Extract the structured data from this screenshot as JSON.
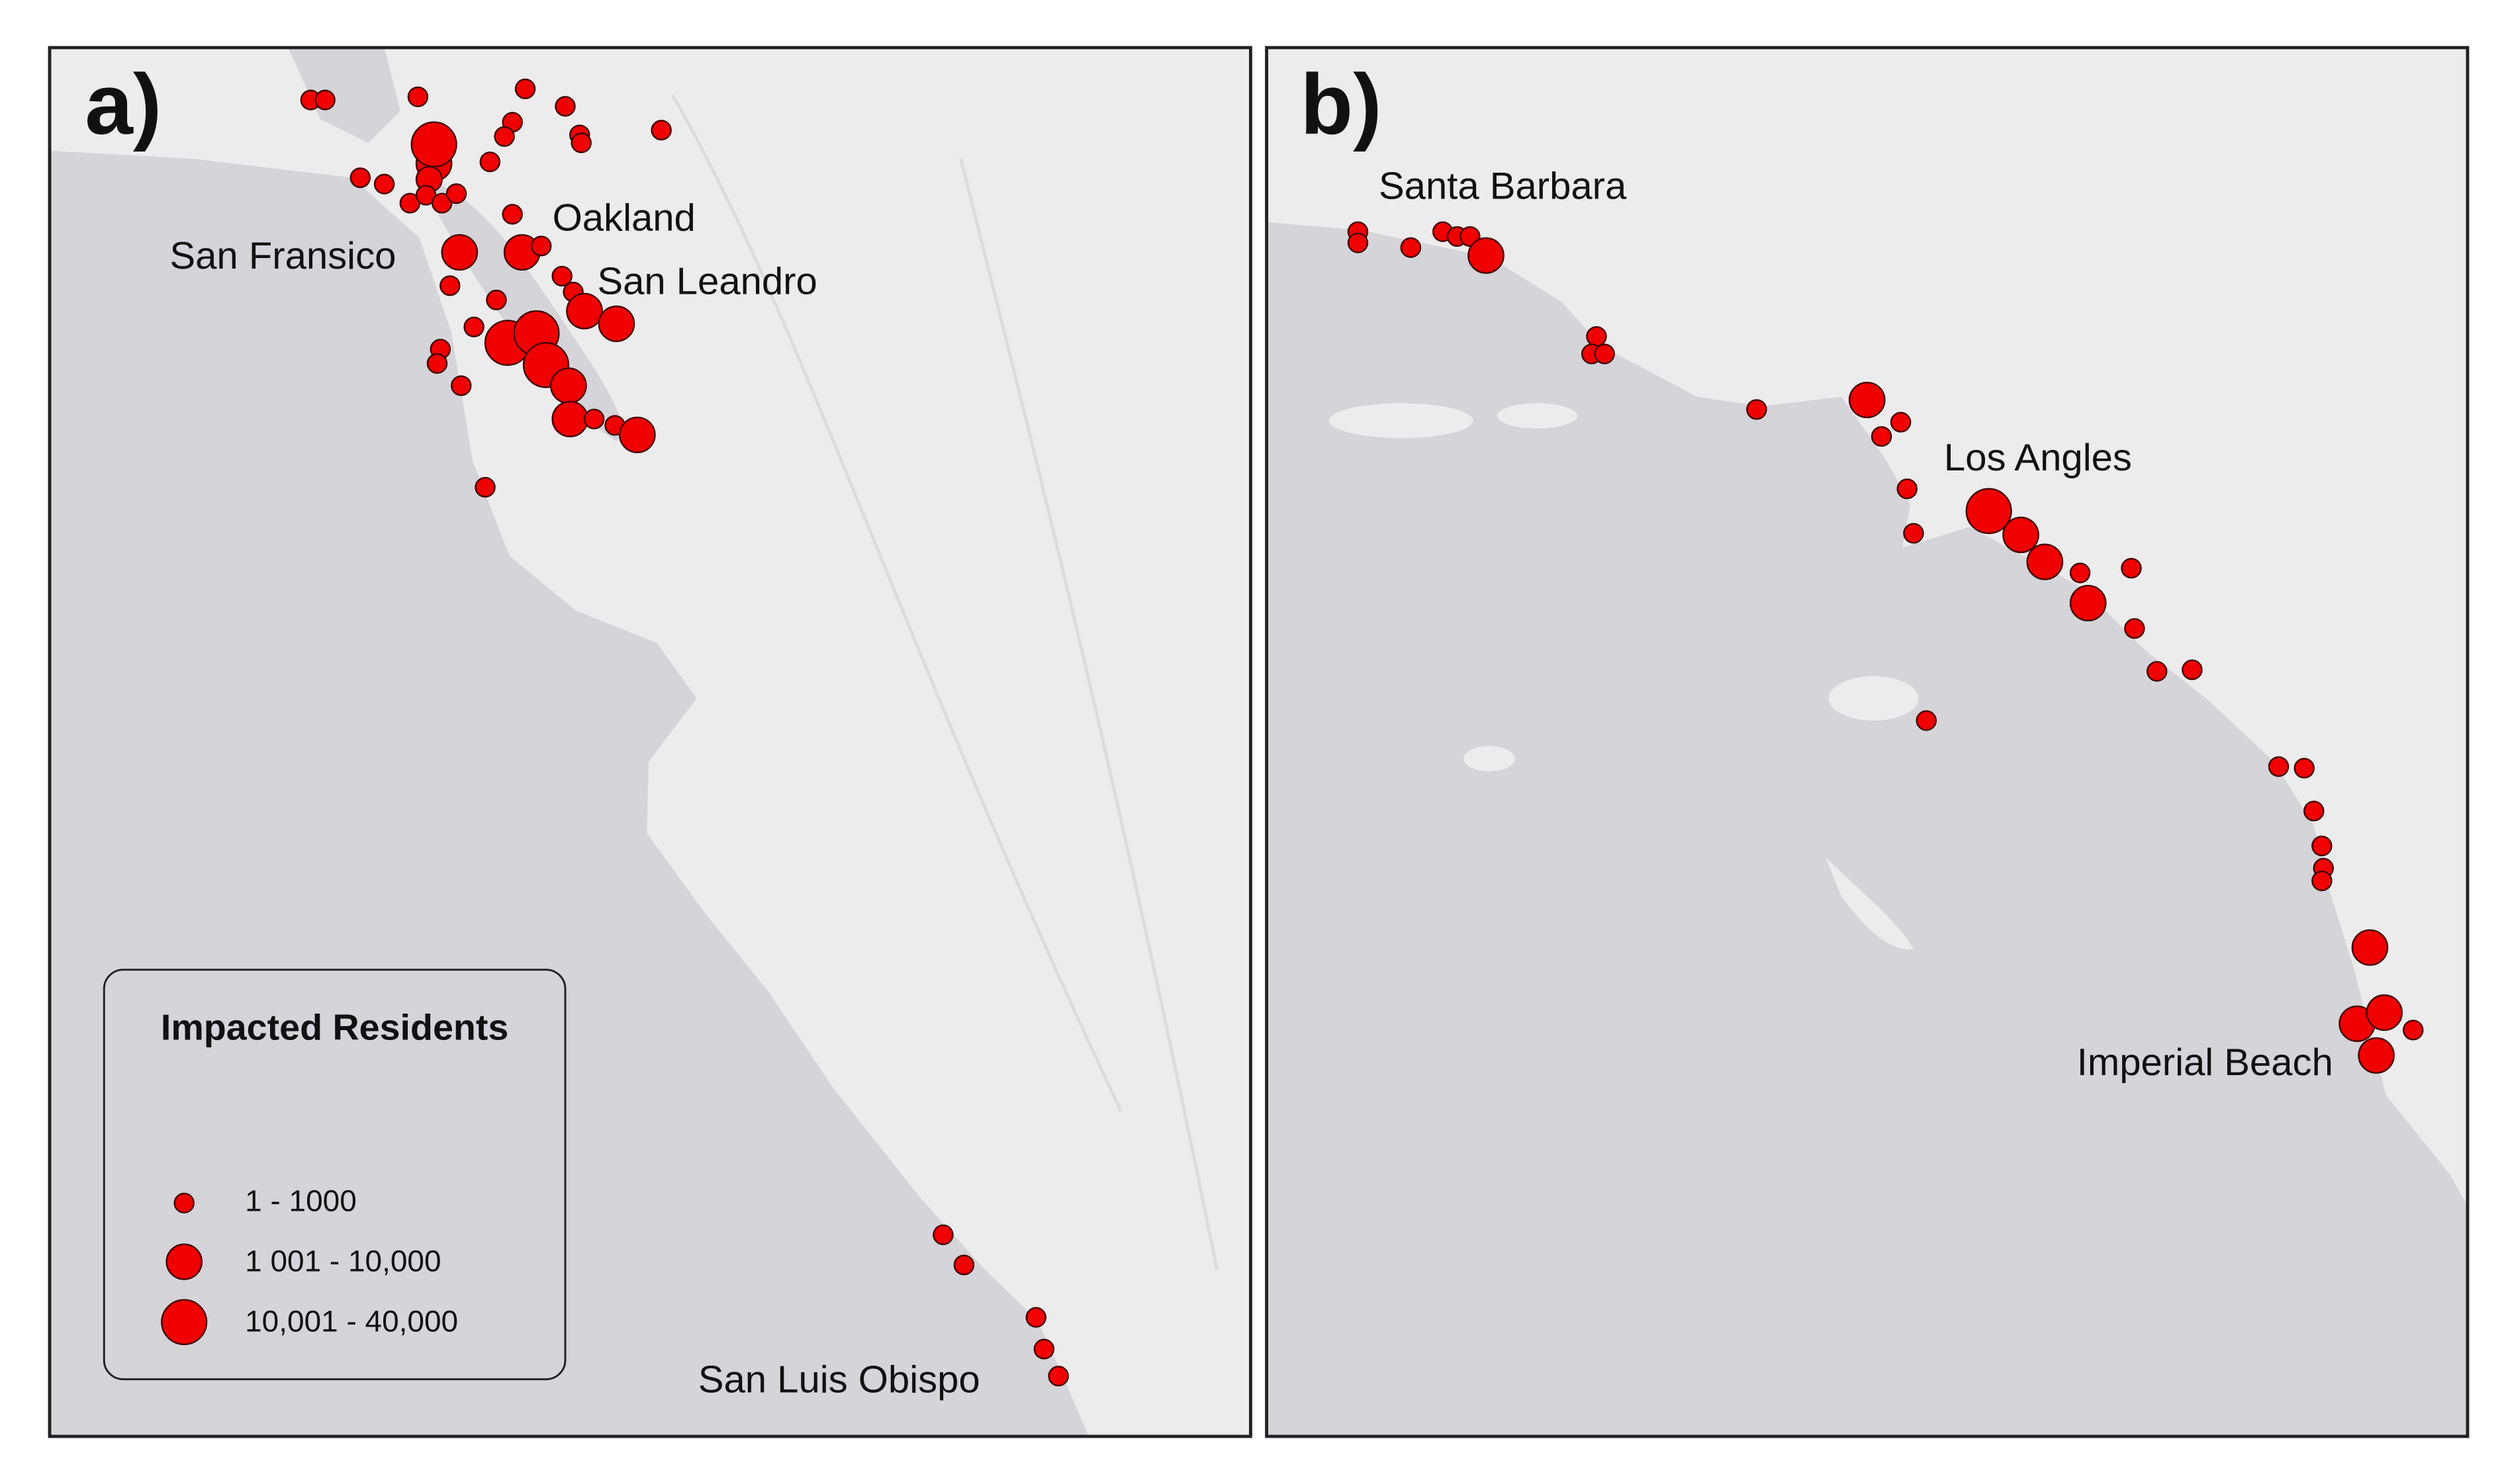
{
  "panels": [
    {
      "label": "a)",
      "places": [
        "San Fransico",
        "Oakland",
        "San Leandro",
        "San Luis Obispo"
      ]
    },
    {
      "label": "b)",
      "places": [
        "Santa Barbara",
        "Los Angles",
        "Imperial Beach"
      ]
    }
  ],
  "legend": {
    "title": "Impacted Residents",
    "entries": [
      "1 - 1000",
      "1 001 - 10,000",
      "10,001 - 40,000"
    ]
  }
}
